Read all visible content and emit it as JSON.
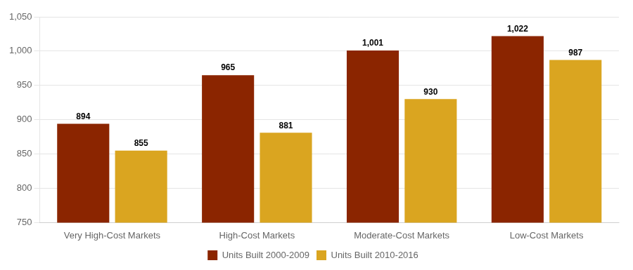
{
  "chart_data": {
    "type": "bar",
    "categories": [
      "Very High-Cost Markets",
      "High-Cost Markets",
      "Moderate-Cost Markets",
      "Low-Cost Markets"
    ],
    "series": [
      {
        "name": "Units Built 2000-2009",
        "color": "#8B2500",
        "values": [
          894,
          965,
          1001,
          1022
        ],
        "value_labels": [
          "894",
          "965",
          "1,001",
          "1,022"
        ]
      },
      {
        "name": "Units Built 2010-2016",
        "color": "#DAA520",
        "values": [
          855,
          881,
          930,
          987
        ]
      }
    ],
    "ylim": [
      750,
      1050
    ],
    "yticks": [
      750,
      800,
      850,
      900,
      950,
      {
        "value": 1000,
        "label": "1,000"
      },
      {
        "value": 1050,
        "label": "1,050"
      }
    ],
    "grid": true,
    "legend": "bottom",
    "data_labels": true
  }
}
